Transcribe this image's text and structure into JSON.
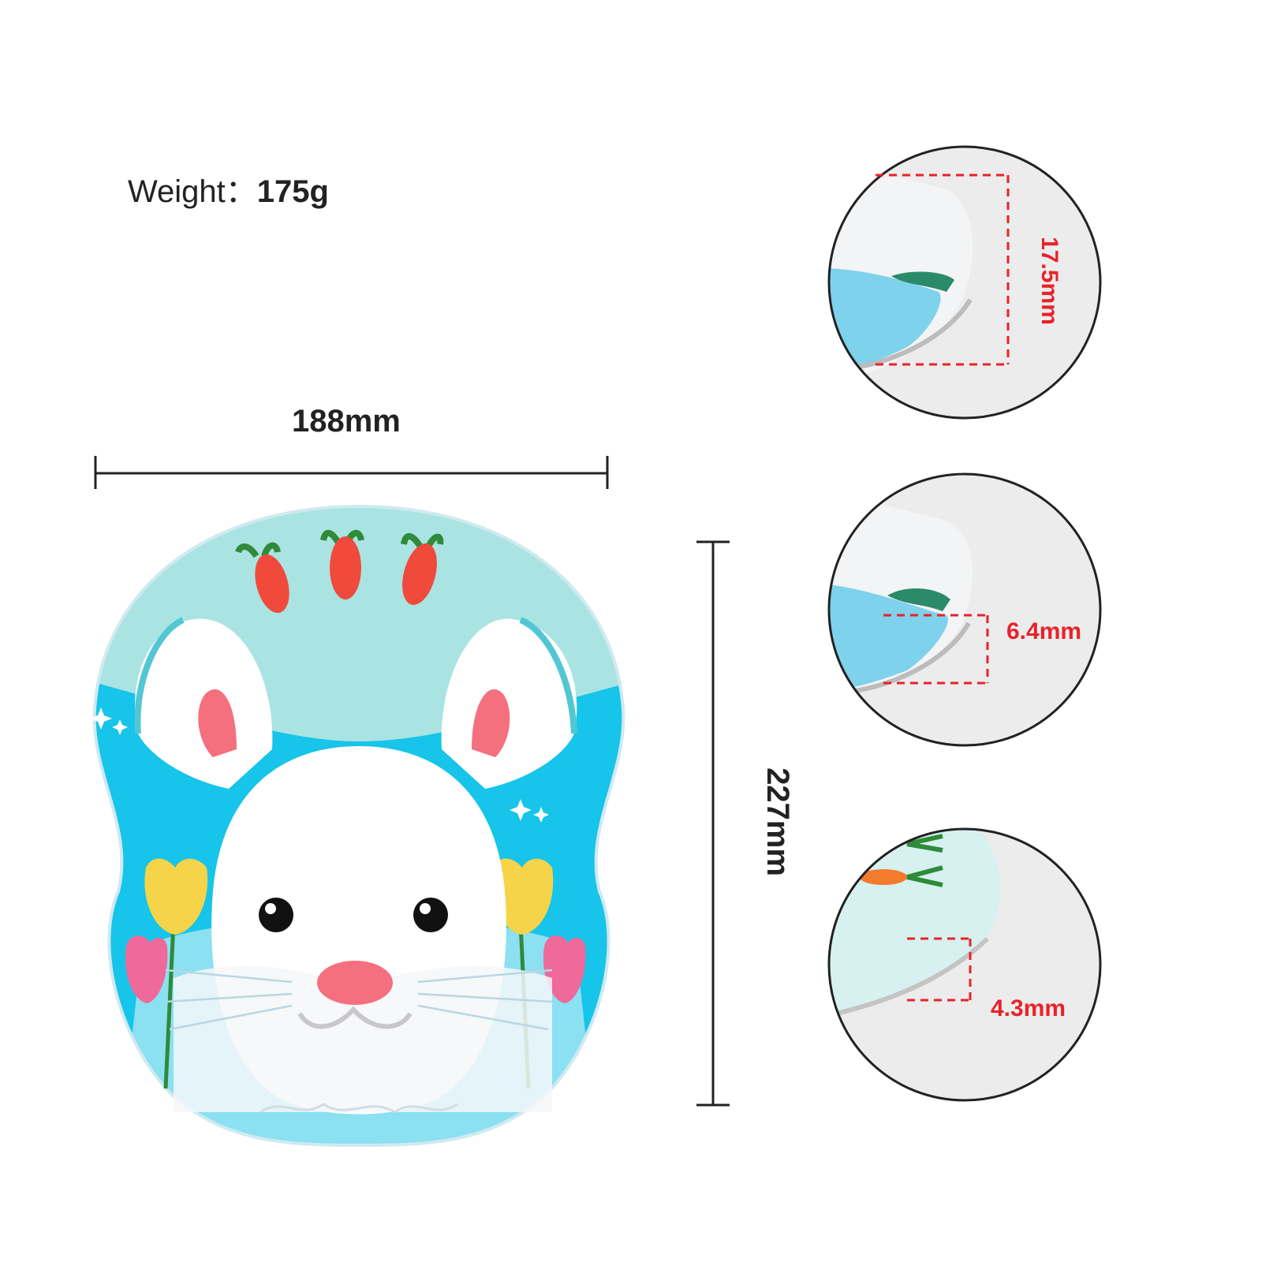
{
  "weight": {
    "label": "Weight：",
    "value": "175g"
  },
  "width_dimension": "188mm",
  "height_dimension": "227mm",
  "detail_views": [
    {
      "label": "17.5mm"
    },
    {
      "label": "6.4mm"
    },
    {
      "label": "4.3mm"
    }
  ],
  "colors": {
    "measure_red": "#e8222a",
    "pad_top": "#a9e4e2",
    "pad_blue": "#17c4ea",
    "bunny_white": "#ffffff",
    "ear_pink": "#f4707e",
    "carrot": "#f04a3c",
    "tulip_yellow": "#f6d44a",
    "tulip_pink": "#ef6a9a"
  },
  "icons": [
    "bunny-illustration",
    "carrot-icon",
    "tulip-icon",
    "sparkle-icon"
  ]
}
